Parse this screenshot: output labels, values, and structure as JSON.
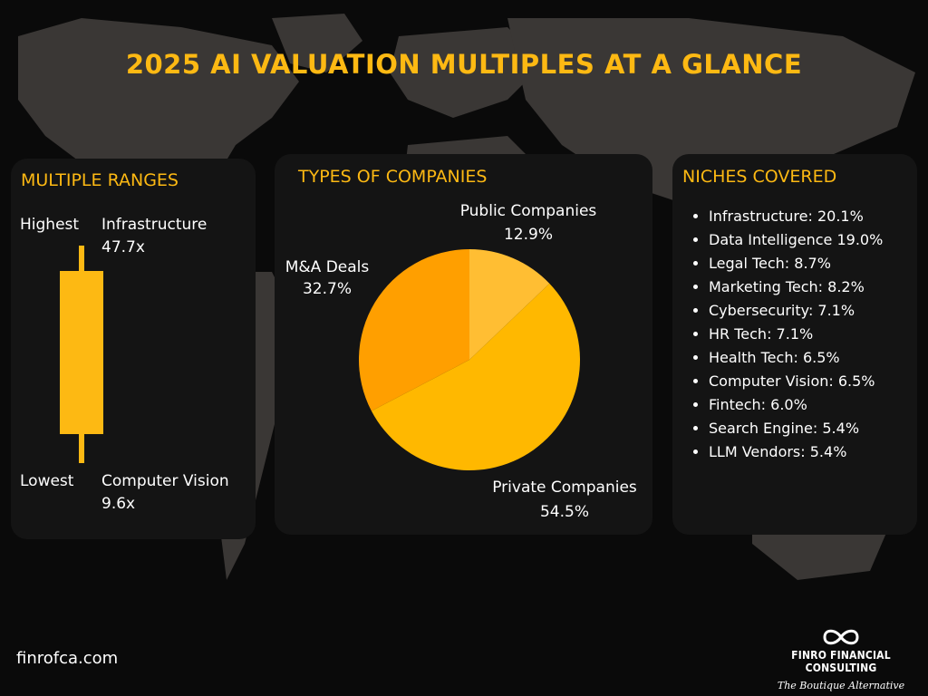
{
  "title": "2025 AI VALUATION MULTIPLES AT A GLANCE",
  "colors": {
    "accent": "#FDB913",
    "private": "#FFB800",
    "mna": "#FF9F00",
    "public": "#FFBE33",
    "card": "#141414"
  },
  "multiple_ranges": {
    "title": "MULTIPLE RANGES",
    "highest_label": "Highest",
    "highest_name": "Infrastructure",
    "highest_value": "47.7x",
    "lowest_label": "Lowest",
    "lowest_name": "Computer Vision",
    "lowest_value": "9.6x"
  },
  "types": {
    "title": "TYPES OF COMPANIES"
  },
  "niches": {
    "title": "NICHES COVERED",
    "items": [
      "Infrastructure: 20.1%",
      "Data Intelligence 19.0%",
      "Legal Tech: 8.7%",
      "Marketing Tech: 8.2%",
      "Cybersecurity: 7.1%",
      "HR Tech: 7.1%",
      "Health Tech: 6.5%",
      "Computer Vision: 6.5%",
      "Fintech: 6.0%",
      "Search Engine: 5.4%",
      "LLM Vendors: 5.4%"
    ]
  },
  "footer": {
    "url": "finrofca.com",
    "brand": "FINRO FINANCIAL CONSULTING",
    "tagline": "The Boutique Alternative",
    "logo_icon": "infinity-icon"
  },
  "chart_data": [
    {
      "type": "pie",
      "title": "TYPES OF COMPANIES",
      "categories": [
        "Public Companies",
        "Private Companies",
        "M&A Deals"
      ],
      "values": [
        12.9,
        54.5,
        32.7
      ],
      "value_labels": [
        "12.9%",
        "54.5%",
        "32.7%"
      ]
    },
    {
      "type": "bar",
      "title": "MULTIPLE RANGES",
      "categories": [
        "Highest",
        "Lowest"
      ],
      "values": [
        47.7,
        9.6
      ],
      "labels": [
        "Infrastructure",
        "Computer Vision"
      ]
    }
  ]
}
